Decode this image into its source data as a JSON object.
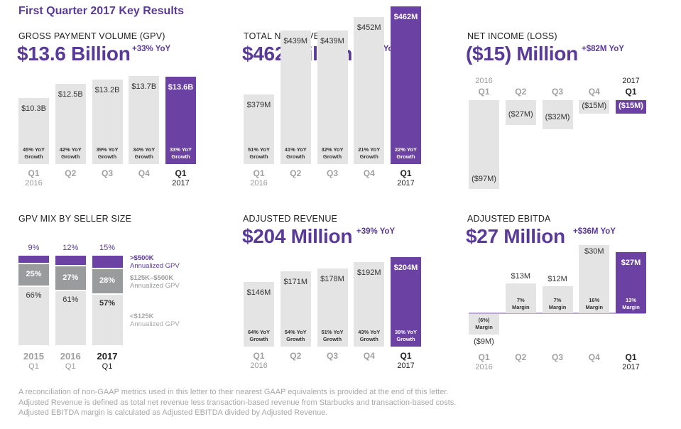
{
  "page_title": "First Quarter 2017 Key Results",
  "colors": {
    "accent": "#6b41a3",
    "title": "#5a3a99",
    "bar": "#e4e4e4",
    "mid_gray": "#9a9b9d"
  },
  "footnotes": [
    "A reconciliation of non-GAAP metrics used in this letter to their nearest GAAP equivalents is provided at the end of this letter.",
    "Adjusted Revenue is defined as total net revenue less transaction-based revenue from Starbucks and transaction-based costs.",
    "Adjusted EBITDA margin is calculated as Adjusted EBITDA divided by Adjusted Revenue."
  ],
  "chart_data": [
    {
      "id": "gpv",
      "type": "bar",
      "title": "GROSS PAYMENT VOLUME (GPV)",
      "headline": "$13.6 Billion",
      "yoy": "+33% YoY",
      "categories": [
        "Q1",
        "Q2",
        "Q3",
        "Q4",
        "Q1"
      ],
      "years": [
        "2016",
        "",
        "",
        "",
        "2017"
      ],
      "values": [
        10.3,
        12.5,
        13.2,
        13.7,
        13.6
      ],
      "value_labels": [
        "$10.3B",
        "$12.5B",
        "$13.2B",
        "$13.7B",
        "$13.6B"
      ],
      "sub_labels": [
        "45% YoY\nGrowth",
        "42% YoY\nGrowth",
        "39% YoY\nGrowth",
        "34% YoY\nGrowth",
        "33% YoY\nGrowth"
      ],
      "highlight_index": 4,
      "unit": "billion USD"
    },
    {
      "id": "net_revenue",
      "type": "bar",
      "title": "TOTAL NET REVENUE",
      "headline": "$462 Million",
      "yoy": "+22% YoY",
      "categories": [
        "Q1",
        "Q2",
        "Q3",
        "Q4",
        "Q1"
      ],
      "years": [
        "2016",
        "",
        "",
        "",
        "2017"
      ],
      "values": [
        379,
        439,
        439,
        452,
        462
      ],
      "value_labels": [
        "$379M",
        "$439M",
        "$439M",
        "$452M",
        "$462M"
      ],
      "sub_labels": [
        "51% YoY\nGrowth",
        "41% YoY\nGrowth",
        "32% YoY\nGrowth",
        "21% YoY\nGrowth",
        "22% YoY\nGrowth"
      ],
      "highlight_index": 4,
      "unit": "million USD"
    },
    {
      "id": "net_income",
      "type": "bar",
      "title": "NET INCOME (LOSS)",
      "headline": "($15) Million",
      "yoy": "+$82M YoY",
      "categories": [
        "Q1",
        "Q2",
        "Q3",
        "Q4",
        "Q1"
      ],
      "years": [
        "2016",
        "",
        "",
        "",
        "2017"
      ],
      "values": [
        -97,
        -27,
        -32,
        -15,
        -15
      ],
      "value_labels": [
        "($97M)",
        "($27M)",
        "($32M)",
        "($15M)",
        "($15M)"
      ],
      "highlight_index": 4,
      "unit": "million USD"
    },
    {
      "id": "gpv_mix",
      "type": "bar",
      "stacked": true,
      "title": "GPV MIX BY SELLER SIZE",
      "categories": [
        "2015",
        "2016",
        "2017"
      ],
      "sub_categories": [
        "Q1",
        "Q1",
        "Q1"
      ],
      "highlight_index": 2,
      "series": [
        {
          "name": ">$500K Annualized GPV",
          "legend_line1": ">$500K",
          "legend_line2": "Annualized GPV",
          "values": [
            9,
            12,
            15
          ],
          "labels": [
            "9%",
            "12%",
            "15%"
          ]
        },
        {
          "name": "$125K–$500K Annualized GPV",
          "legend_line1": "$125K–$500K",
          "legend_line2": "Annualized GPV",
          "values": [
            25,
            27,
            28
          ],
          "labels": [
            "25%",
            "27%",
            "28%"
          ]
        },
        {
          "name": "<$125K Annualized GPV",
          "legend_line1": "<$125K",
          "legend_line2": "Annualized GPV",
          "values": [
            66,
            61,
            57
          ],
          "labels": [
            "66%",
            "61%",
            "57%"
          ]
        }
      ],
      "unit": "percent"
    },
    {
      "id": "adjusted_revenue",
      "type": "bar",
      "title": "ADJUSTED REVENUE",
      "headline": "$204 Million",
      "yoy": "+39% YoY",
      "categories": [
        "Q1",
        "Q2",
        "Q3",
        "Q4",
        "Q1"
      ],
      "years": [
        "2016",
        "",
        "",
        "",
        "2017"
      ],
      "values": [
        146,
        171,
        178,
        192,
        204
      ],
      "value_labels": [
        "$146M",
        "$171M",
        "$178M",
        "$192M",
        "$204M"
      ],
      "sub_labels": [
        "64% YoY\nGrowth",
        "54% YoY\nGrowth",
        "51% YoY\nGrowth",
        "43% YoY\nGrowth",
        "39% YoY\nGrowth"
      ],
      "highlight_index": 4,
      "unit": "million USD"
    },
    {
      "id": "adjusted_ebitda",
      "type": "bar",
      "title": "ADJUSTED EBITDA",
      "headline": "$27 Million",
      "yoy": "+$36M YoY",
      "categories": [
        "Q1",
        "Q2",
        "Q3",
        "Q4",
        "Q1"
      ],
      "years": [
        "2016",
        "",
        "",
        "",
        "2017"
      ],
      "values": [
        -9,
        13,
        12,
        30,
        27
      ],
      "value_labels": [
        "($9M)",
        "$13M",
        "$12M",
        "$30M",
        "$27M"
      ],
      "sub_labels": [
        "(6%)\nMargin",
        "7%\nMargin",
        "7%\nMargin",
        "16%\nMargin",
        "13%\nMargin"
      ],
      "highlight_index": 4,
      "unit": "million USD"
    }
  ]
}
